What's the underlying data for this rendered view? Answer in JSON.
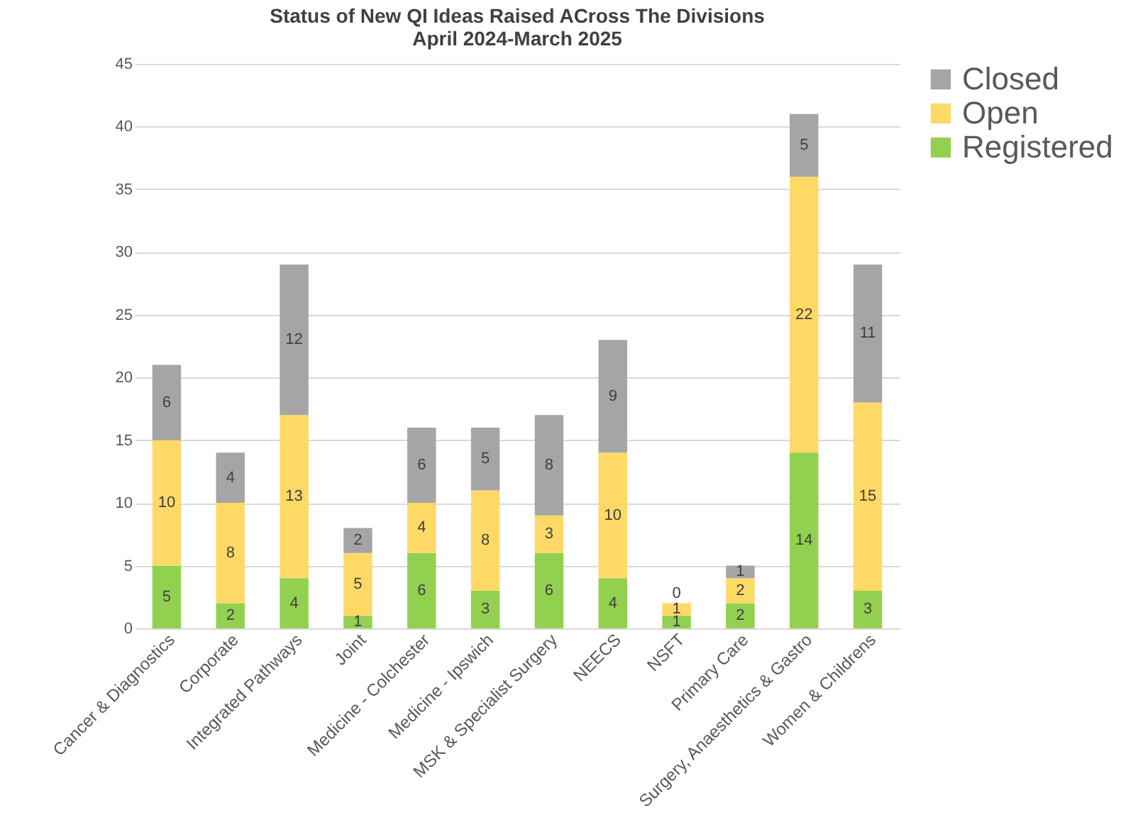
{
  "chart_data": {
    "type": "bar",
    "title": [
      "Status of New QI Ideas Raised ACross The Divisions",
      "April 2024-March 2025"
    ],
    "categories": [
      "Cancer & Diagnostics",
      "Corporate",
      "Integrated Pathways",
      "Joint",
      "Medicine - Colchester",
      "Medicine - Ipswich",
      "MSK & Specialist Surgery",
      "NEECS",
      "NSFT",
      "Primary Care",
      "Surgery, Anaesthetics & Gastro",
      "Women & Childrens"
    ],
    "series": [
      {
        "name": "Registered",
        "color": "#92d050",
        "values": [
          5,
          2,
          4,
          1,
          6,
          3,
          6,
          4,
          1,
          2,
          14,
          3
        ]
      },
      {
        "name": "Open",
        "color": "#ffd966",
        "values": [
          10,
          8,
          13,
          5,
          4,
          8,
          3,
          10,
          1,
          2,
          22,
          15
        ]
      },
      {
        "name": "Closed",
        "color": "#a5a5a5",
        "values": [
          6,
          4,
          12,
          2,
          6,
          5,
          8,
          9,
          0,
          1,
          5,
          11
        ]
      }
    ],
    "stacked": true,
    "data_labels": true,
    "ylim": [
      0,
      45
    ],
    "yticks": [
      0,
      5,
      10,
      15,
      20,
      25,
      30,
      35,
      40,
      45
    ],
    "grid": "y",
    "legend": "top right"
  }
}
